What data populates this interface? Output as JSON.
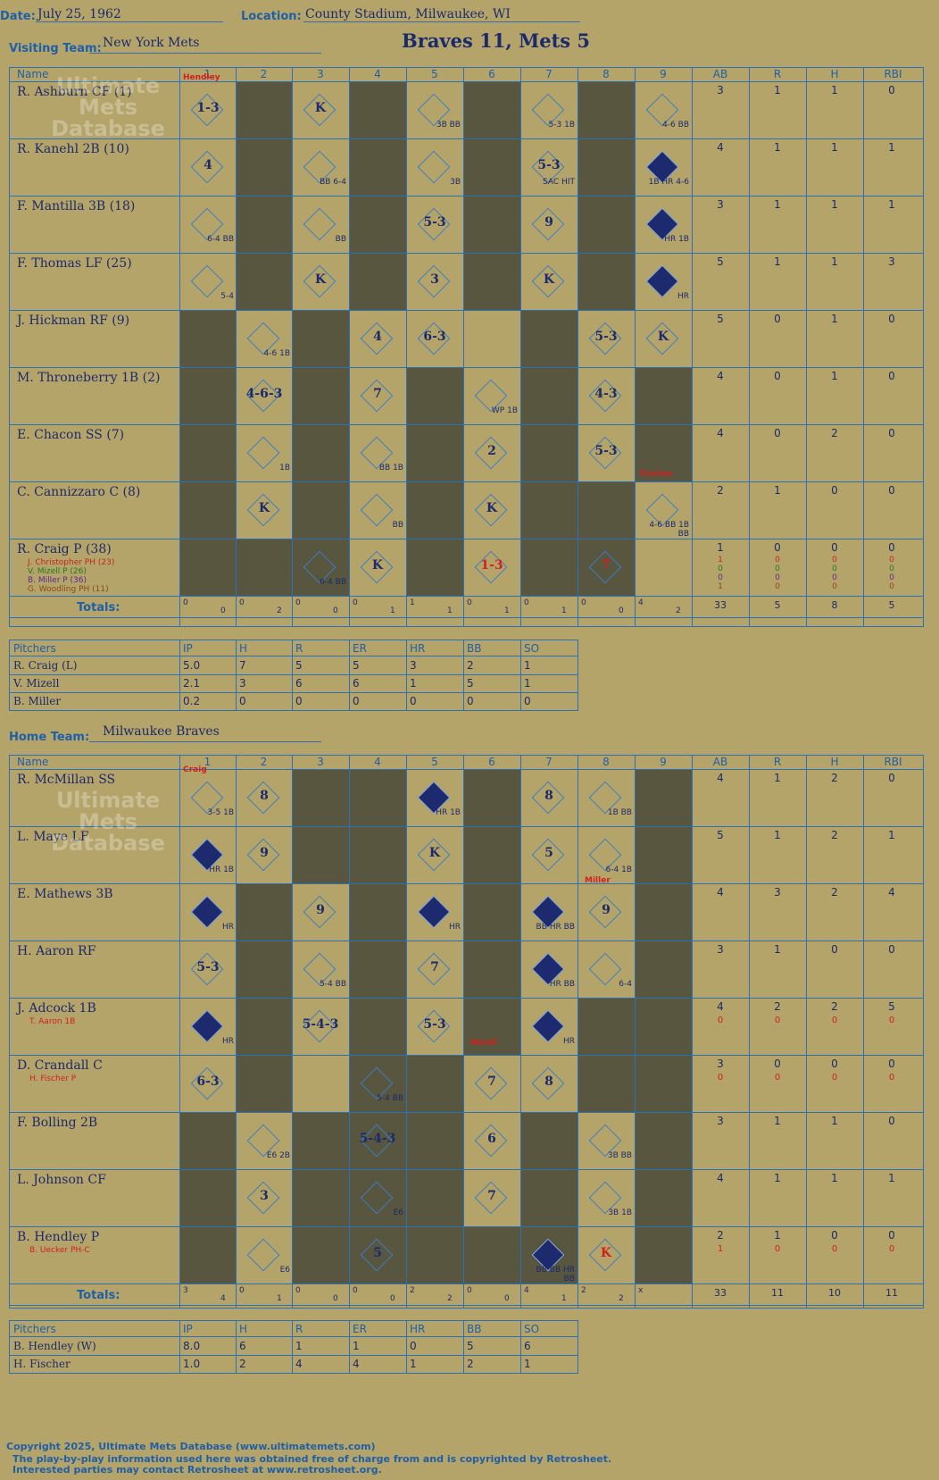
{
  "header": {
    "date_label": "Date:",
    "date": "July 25, 1962",
    "location_label": "Location:",
    "location": "County Stadium, Milwaukee, WI",
    "visiting_label": "Visiting Team:",
    "visiting_team": "New York Mets",
    "home_label": "Home Team:",
    "home_team": "Milwaukee Braves",
    "result": "Braves 11, Mets 5"
  },
  "columns": [
    "Name",
    "1",
    "2",
    "3",
    "4",
    "5",
    "6",
    "7",
    "8",
    "9",
    "AB",
    "R",
    "H",
    "RBI"
  ],
  "visitors": {
    "players": [
      {
        "name": "R. Ashburn CF (1)",
        "ab": "3",
        "r": "1",
        "h": "1",
        "rbi": "0"
      },
      {
        "name": "R. Kanehl 2B (10)",
        "ab": "4",
        "r": "1",
        "h": "1",
        "rbi": "1"
      },
      {
        "name": "F. Mantilla 3B (18)",
        "ab": "3",
        "r": "1",
        "h": "1",
        "rbi": "1"
      },
      {
        "name": "F. Thomas LF (25)",
        "ab": "5",
        "r": "1",
        "h": "1",
        "rbi": "3"
      },
      {
        "name": "J. Hickman RF (9)",
        "ab": "5",
        "r": "0",
        "h": "1",
        "rbi": "0"
      },
      {
        "name": "M. Throneberry 1B (2)",
        "ab": "4",
        "r": "0",
        "h": "1",
        "rbi": "0"
      },
      {
        "name": "E. Chacon SS (7)",
        "ab": "4",
        "r": "0",
        "h": "2",
        "rbi": "0"
      },
      {
        "name": "C. Cannizzaro C (8)",
        "ab": "2",
        "r": "1",
        "h": "0",
        "rbi": "0"
      },
      {
        "name": "R. Craig P (38)",
        "ab": "1",
        "r": "0",
        "h": "0",
        "rbi": "0"
      }
    ],
    "subs": [
      "J. Christopher PH (23)",
      "V. Mizell P (26)",
      "B. Miller P (36)",
      "G. Woodling PH (11)"
    ],
    "sub_stats": [
      [
        "1",
        "0",
        "0",
        "0"
      ],
      [
        "0",
        "0",
        "0",
        "0"
      ],
      [
        "0",
        "0",
        "0",
        "0"
      ],
      [
        "1",
        "0",
        "0",
        "0"
      ]
    ],
    "totals_label": "Totals:",
    "totals_rh": [
      [
        "0",
        "0"
      ],
      [
        "0",
        "2"
      ],
      [
        "0",
        "0"
      ],
      [
        "0",
        "1"
      ],
      [
        "1",
        "1"
      ],
      [
        "0",
        "1"
      ],
      [
        "0",
        "1"
      ],
      [
        "0",
        "0"
      ],
      [
        "4",
        "2"
      ]
    ],
    "totals": {
      "ab": "33",
      "r": "5",
      "h": "8",
      "rbi": "5"
    }
  },
  "visitor_pitchers": {
    "headers": [
      "Pitchers",
      "IP",
      "H",
      "R",
      "ER",
      "HR",
      "BB",
      "SO"
    ],
    "rows": [
      [
        "R. Craig (L)",
        "5.0",
        "7",
        "5",
        "5",
        "3",
        "2",
        "1"
      ],
      [
        "V. Mizell",
        "2.1",
        "3",
        "6",
        "6",
        "1",
        "5",
        "1"
      ],
      [
        "B. Miller",
        "0.2",
        "0",
        "0",
        "0",
        "0",
        "0",
        "0"
      ]
    ]
  },
  "home": {
    "players": [
      {
        "name": "R. McMillan SS",
        "ab": "4",
        "r": "1",
        "h": "2",
        "rbi": "0"
      },
      {
        "name": "L. Maye LF",
        "ab": "5",
        "r": "1",
        "h": "2",
        "rbi": "1"
      },
      {
        "name": "E. Mathews 3B",
        "ab": "4",
        "r": "3",
        "h": "2",
        "rbi": "4"
      },
      {
        "name": "H. Aaron RF",
        "ab": "3",
        "r": "1",
        "h": "0",
        "rbi": "0"
      },
      {
        "name": "J. Adcock 1B",
        "ab": "4",
        "r": "2",
        "h": "2",
        "rbi": "5",
        "sub": "T. Aaron 1B",
        "sub_stats": [
          "0",
          "0",
          "0",
          "0"
        ]
      },
      {
        "name": "D. Crandall C",
        "ab": "3",
        "r": "0",
        "h": "0",
        "rbi": "0",
        "sub": "H. Fischer P",
        "sub_stats": [
          "0",
          "0",
          "0",
          "0"
        ]
      },
      {
        "name": "F. Bolling 2B",
        "ab": "3",
        "r": "1",
        "h": "1",
        "rbi": "0"
      },
      {
        "name": "L. Johnson CF",
        "ab": "4",
        "r": "1",
        "h": "1",
        "rbi": "1"
      },
      {
        "name": "B. Hendley P",
        "ab": "2",
        "r": "1",
        "h": "0",
        "rbi": "0",
        "sub": "B. Uecker PH-C",
        "sub_stats": [
          "1",
          "0",
          "0",
          "0"
        ]
      }
    ],
    "totals_label": "Totals:",
    "totals_rh": [
      [
        "3",
        "4"
      ],
      [
        "0",
        "1"
      ],
      [
        "0",
        "0"
      ],
      [
        "0",
        "0"
      ],
      [
        "2",
        "2"
      ],
      [
        "0",
        "0"
      ],
      [
        "4",
        "1"
      ],
      [
        "2",
        "2"
      ],
      [
        "x",
        ""
      ]
    ],
    "totals": {
      "ab": "33",
      "r": "11",
      "h": "10",
      "rbi": "11"
    }
  },
  "home_pitchers": {
    "headers": [
      "Pitchers",
      "IP",
      "H",
      "R",
      "ER",
      "HR",
      "BB",
      "SO"
    ],
    "rows": [
      [
        "B. Hendley (W)",
        "8.0",
        "6",
        "1",
        "1",
        "0",
        "5",
        "6"
      ],
      [
        "H. Fischer",
        "1.0",
        "2",
        "4",
        "4",
        "1",
        "2",
        "1"
      ]
    ]
  },
  "plays_visitors": [
    [
      [
        "1-3",
        ""
      ],
      null,
      [
        "K",
        ""
      ],
      null,
      [
        "",
        "3B BB"
      ],
      null,
      [
        "",
        "5-3 1B"
      ],
      null,
      [
        "",
        "4-6 BB"
      ]
    ],
    [
      [
        "4",
        ""
      ],
      null,
      [
        "",
        "BB 6-4"
      ],
      null,
      [
        "",
        "3B"
      ],
      null,
      [
        "5-3",
        "SAC HIT"
      ],
      null,
      [
        "",
        "1B HR 4-6"
      ]
    ],
    [
      [
        "",
        "6-4 BB"
      ],
      null,
      [
        "",
        "BB"
      ],
      null,
      [
        "5-3",
        ""
      ],
      null,
      [
        "9",
        ""
      ],
      null,
      [
        "",
        "HR 1B"
      ]
    ],
    [
      [
        "",
        "5-4"
      ],
      null,
      [
        "K",
        ""
      ],
      null,
      [
        "3",
        ""
      ],
      null,
      [
        "K",
        ""
      ],
      null,
      [
        "",
        "HR"
      ]
    ],
    [
      null,
      [
        "",
        "4-6 1B"
      ],
      null,
      [
        "4",
        ""
      ],
      [
        "6-3",
        ""
      ],
      null,
      null,
      [
        "5-3",
        ""
      ],
      [
        "K",
        ""
      ]
    ],
    [
      null,
      [
        "4-6-3",
        ""
      ],
      null,
      [
        "7",
        ""
      ],
      null,
      [
        "",
        "WP 1B"
      ],
      null,
      [
        "4-3",
        ""
      ],
      null
    ],
    [
      null,
      [
        "",
        "1B"
      ],
      null,
      [
        "",
        "BB 1B"
      ],
      null,
      [
        "2",
        ""
      ],
      null,
      [
        "5-3",
        ""
      ],
      null
    ],
    [
      null,
      [
        "K",
        ""
      ],
      null,
      [
        "",
        "BB"
      ],
      null,
      [
        "K",
        ""
      ],
      null,
      null,
      [
        "",
        "4-6 BB 1B BB"
      ]
    ],
    [
      null,
      null,
      [
        "",
        "6-4 BB"
      ],
      [
        "K",
        ""
      ],
      null,
      [
        "1-3",
        ""
      ],
      null,
      [
        "7",
        ""
      ],
      null
    ]
  ],
  "plays_home": [
    [
      [
        "",
        "3-5 1B"
      ],
      [
        "8",
        ""
      ],
      null,
      null,
      [
        "",
        "HR 1B"
      ],
      null,
      [
        "8",
        ""
      ],
      [
        "",
        "1B BB"
      ],
      null
    ],
    [
      [
        "",
        "HR 1B"
      ],
      [
        "9",
        ""
      ],
      null,
      null,
      [
        "K",
        ""
      ],
      null,
      [
        "5",
        ""
      ],
      [
        "",
        "6-4 1B"
      ],
      null
    ],
    [
      [
        "",
        "HR"
      ],
      null,
      [
        "9",
        ""
      ],
      null,
      [
        "",
        "HR"
      ],
      null,
      [
        "",
        "BB HR BB"
      ],
      [
        "9",
        ""
      ],
      null
    ],
    [
      [
        "5-3",
        ""
      ],
      null,
      [
        "",
        "5-4 BB"
      ],
      null,
      [
        "7",
        ""
      ],
      null,
      [
        "",
        "HR BB"
      ],
      [
        "",
        "6-4"
      ],
      null
    ],
    [
      [
        "",
        "HR"
      ],
      null,
      [
        "5-4-3",
        ""
      ],
      null,
      [
        "5-3",
        ""
      ],
      null,
      [
        "",
        "HR"
      ],
      null,
      null
    ],
    [
      [
        "6-3",
        ""
      ],
      null,
      null,
      [
        "",
        "5-4 BB"
      ],
      null,
      [
        "7",
        ""
      ],
      [
        "8",
        ""
      ],
      null,
      null
    ],
    [
      null,
      [
        "",
        "E6 2B"
      ],
      null,
      [
        "5-4-3",
        ""
      ],
      null,
      [
        "6",
        ""
      ],
      null,
      [
        "",
        "3B BB"
      ],
      null
    ],
    [
      null,
      [
        "3",
        ""
      ],
      null,
      [
        "",
        "E6"
      ],
      null,
      [
        "7",
        ""
      ],
      null,
      [
        "",
        "3B 1B"
      ],
      null
    ],
    [
      null,
      [
        "",
        "E6"
      ],
      null,
      [
        "5",
        ""
      ],
      null,
      null,
      [
        "",
        "BB BB HR BB"
      ],
      [
        "K",
        ""
      ],
      null
    ]
  ],
  "annotations": {
    "v_hendley": "Hendley",
    "v_fischer": "Fischer",
    "h_craig": "Craig",
    "h_miller": "Miller",
    "h_mizell": "Mizell"
  },
  "footer": {
    "line1": "Copyright 2025, Ultimate Mets Database (www.ultimatemets.com)",
    "line2": "The play-by-play information used here was obtained free of charge from and is copyrighted by Retrosheet.",
    "line3": "Interested parties may contact Retrosheet at www.retrosheet.org."
  },
  "watermark": "Ultimate Mets Database"
}
